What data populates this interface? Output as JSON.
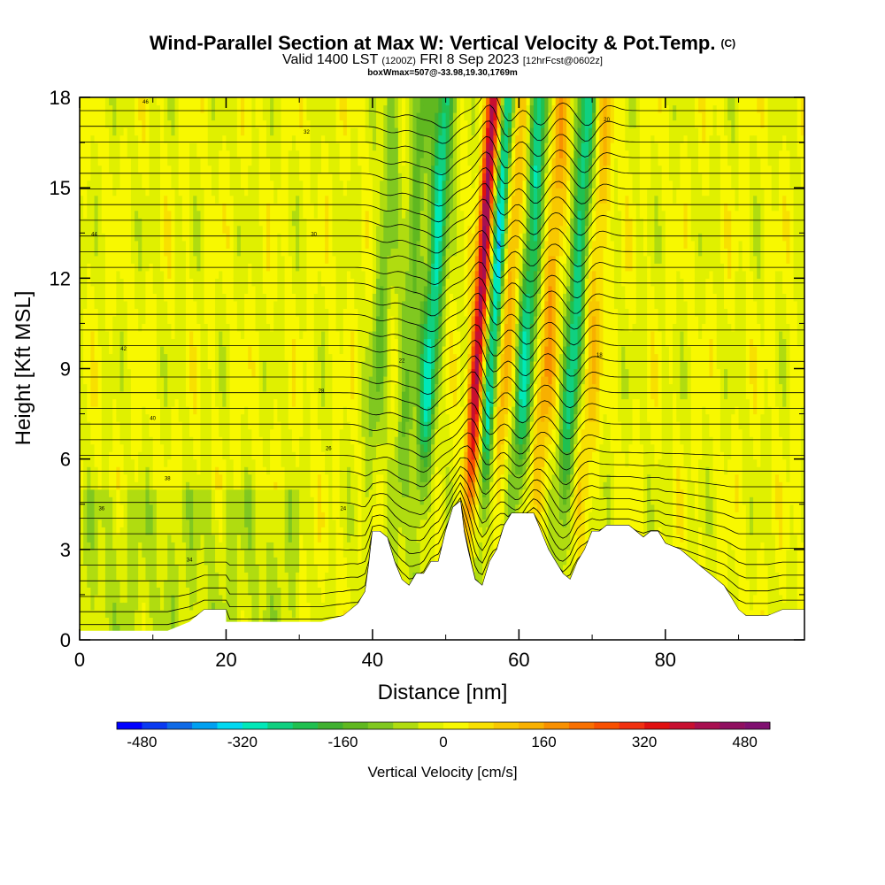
{
  "title": "Wind-Parallel Section at Max W: Vertical Velocity & Pot.Temp.",
  "title_mark": "(C)",
  "subtitle": {
    "valid": "Valid 1400 LST",
    "utc": "(1200Z)",
    "date": "FRI 8 Sep 2023",
    "forecast": "[12hrFcst@0602z]"
  },
  "box_info": "boxWmax=507@-33.98,19.30,1769m",
  "chart_data": {
    "type": "heatmap",
    "title": "Wind-Parallel Section at Max W: Vertical Velocity & Pot.Temp.",
    "xlabel": "Distance [nm]",
    "ylabel": "Height [Kft MSL]",
    "xlim": [
      0,
      99
    ],
    "ylim": [
      0,
      18
    ],
    "xticks": [
      0,
      20,
      40,
      60,
      80
    ],
    "yticks": [
      0,
      3,
      6,
      9,
      12,
      15,
      18
    ],
    "colorbar": {
      "label": "Vertical Velocity [cm/s]",
      "min": -480,
      "max": 480,
      "step": 40,
      "ticks": [
        -480,
        -320,
        -160,
        0,
        160,
        320,
        480
      ],
      "colors": [
        "#0000ff",
        "#0a3af0",
        "#0f6ae6",
        "#00a0f0",
        "#00d8f0",
        "#00e8b8",
        "#10d080",
        "#20c050",
        "#40b030",
        "#60b820",
        "#80c820",
        "#b0dc10",
        "#e0f000",
        "#f8f800",
        "#f8e000",
        "#f8c800",
        "#f8b000",
        "#f89000",
        "#f87000",
        "#f85000",
        "#f03010",
        "#e01010",
        "#c81030",
        "#a81050",
        "#901060",
        "#801070"
      ]
    },
    "terrain_height_kft": [
      [
        0,
        0.3
      ],
      [
        5,
        0.3
      ],
      [
        9,
        0.3
      ],
      [
        12,
        0.3
      ],
      [
        15,
        0.6
      ],
      [
        17,
        1.0
      ],
      [
        20,
        1.0
      ],
      [
        20,
        0.6
      ],
      [
        25,
        0.6
      ],
      [
        30,
        0.6
      ],
      [
        33,
        0.6
      ],
      [
        36,
        0.8
      ],
      [
        38,
        1.2
      ],
      [
        39,
        1.6
      ],
      [
        39.5,
        2.5
      ],
      [
        40,
        3.6
      ],
      [
        41,
        3.6
      ],
      [
        42,
        3.4
      ],
      [
        43,
        2.6
      ],
      [
        44,
        2.0
      ],
      [
        45,
        1.8
      ],
      [
        46,
        2.2
      ],
      [
        47,
        2.2
      ],
      [
        48,
        2.6
      ],
      [
        49,
        2.6
      ],
      [
        50,
        3.6
      ],
      [
        51,
        4.4
      ],
      [
        52,
        4.6
      ],
      [
        52.5,
        3.6
      ],
      [
        53,
        3.0
      ],
      [
        54,
        2.0
      ],
      [
        55,
        1.8
      ],
      [
        56,
        2.6
      ],
      [
        57,
        3.0
      ],
      [
        58,
        3.8
      ],
      [
        59,
        4.2
      ],
      [
        62,
        4.2
      ],
      [
        63,
        3.6
      ],
      [
        64,
        3.0
      ],
      [
        65,
        2.6
      ],
      [
        66,
        2.2
      ],
      [
        67,
        2.0
      ],
      [
        68,
        2.6
      ],
      [
        69,
        3.0
      ],
      [
        70,
        3.6
      ],
      [
        71,
        3.6
      ],
      [
        72,
        3.8
      ],
      [
        75,
        3.8
      ],
      [
        76,
        3.6
      ],
      [
        77,
        3.4
      ],
      [
        78,
        3.6
      ],
      [
        79,
        3.6
      ],
      [
        80,
        3.2
      ],
      [
        82,
        3.0
      ],
      [
        84,
        2.6
      ],
      [
        86,
        2.2
      ],
      [
        88,
        1.8
      ],
      [
        90,
        1.0
      ],
      [
        91,
        0.8
      ],
      [
        92,
        0.8
      ],
      [
        94,
        0.8
      ],
      [
        96,
        1.0
      ],
      [
        99,
        1.0
      ]
    ],
    "w_features_cm_s": [
      {
        "x": 47,
        "w": -260
      },
      {
        "x": 53.5,
        "w": 400
      },
      {
        "x": 55.5,
        "w": -300
      },
      {
        "x": 57.5,
        "w": 120
      },
      {
        "x": 60,
        "w": -250
      },
      {
        "x": 63,
        "w": 140
      },
      {
        "x": 66.5,
        "w": -250
      },
      {
        "x": 69,
        "w": 100
      },
      {
        "x": 44,
        "w": -120
      },
      {
        "x": 40,
        "w": -100
      }
    ],
    "theta_contour_labels": [
      "46",
      "44",
      "42",
      "40",
      "38",
      "36",
      "34",
      "32",
      "30",
      "28",
      "26",
      "24",
      "22",
      "20",
      "18"
    ]
  }
}
